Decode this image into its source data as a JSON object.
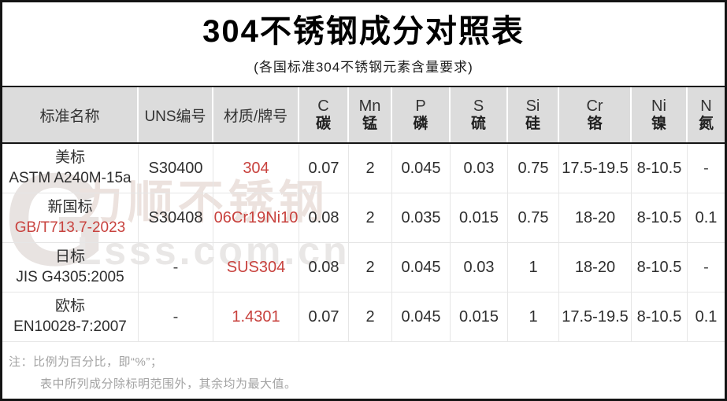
{
  "title": "304不锈钢成分对照表",
  "subtitle": "(各国标准304不锈钢元素含量要求)",
  "header": {
    "text_columns": [
      {
        "key": "standard",
        "label": "标准名称"
      },
      {
        "key": "uns",
        "label": "UNS编号"
      },
      {
        "key": "grade",
        "label": "材质/牌号"
      }
    ],
    "element_columns": [
      {
        "symbol": "C",
        "cn": "碳"
      },
      {
        "symbol": "Mn",
        "cn": "锰"
      },
      {
        "symbol": "P",
        "cn": "磷"
      },
      {
        "symbol": "S",
        "cn": "硫"
      },
      {
        "symbol": "Si",
        "cn": "硅"
      },
      {
        "symbol": "Cr",
        "cn": "铬"
      },
      {
        "symbol": "Ni",
        "cn": "镍"
      },
      {
        "symbol": "N",
        "cn": "氮"
      }
    ]
  },
  "rows": [
    {
      "standard_name": "美标",
      "standard_code": "ASTM A240M-15a",
      "standard_code_red": false,
      "uns": "S30400",
      "grade": "304",
      "values": [
        "0.07",
        "2",
        "0.045",
        "0.03",
        "0.75",
        "17.5-19.5",
        "8-10.5",
        "-"
      ]
    },
    {
      "standard_name": "新国标",
      "standard_code": "GB/T713.7-2023",
      "standard_code_red": true,
      "uns": "S30408",
      "grade": "06Cr19Ni10",
      "values": [
        "0.08",
        "2",
        "0.035",
        "0.015",
        "0.75",
        "18-20",
        "8-10.5",
        "0.1"
      ]
    },
    {
      "standard_name": "日标",
      "standard_code": "JIS G4305:2005",
      "standard_code_red": false,
      "uns": "-",
      "grade": "SUS304",
      "values": [
        "0.08",
        "2",
        "0.045",
        "0.03",
        "1",
        "18-20",
        "8-10.5",
        "-"
      ]
    },
    {
      "standard_name": "欧标",
      "standard_code": "EN10028-7:2007",
      "standard_code_red": false,
      "uns": "-",
      "grade": "1.4301",
      "values": [
        "0.07",
        "2",
        "0.045",
        "0.015",
        "1",
        "17.5-19.5",
        "8-10.5",
        "0.1"
      ]
    }
  ],
  "notes": [
    "注：比例为百分比，即“%”；",
    "表中所列成分除标明范围外，其余均为最大值。"
  ],
  "watermark": {
    "logo_letter": "G",
    "brand": "力顺不锈钢",
    "domain": "Lsss.com.cn"
  },
  "colors": {
    "accent_red": "#c8423e",
    "header_bg": "#dcdcdc",
    "grid_line": "#e6e6e6",
    "note_gray": "#a2a2a2",
    "watermark_gray": "#e8e3e1"
  }
}
